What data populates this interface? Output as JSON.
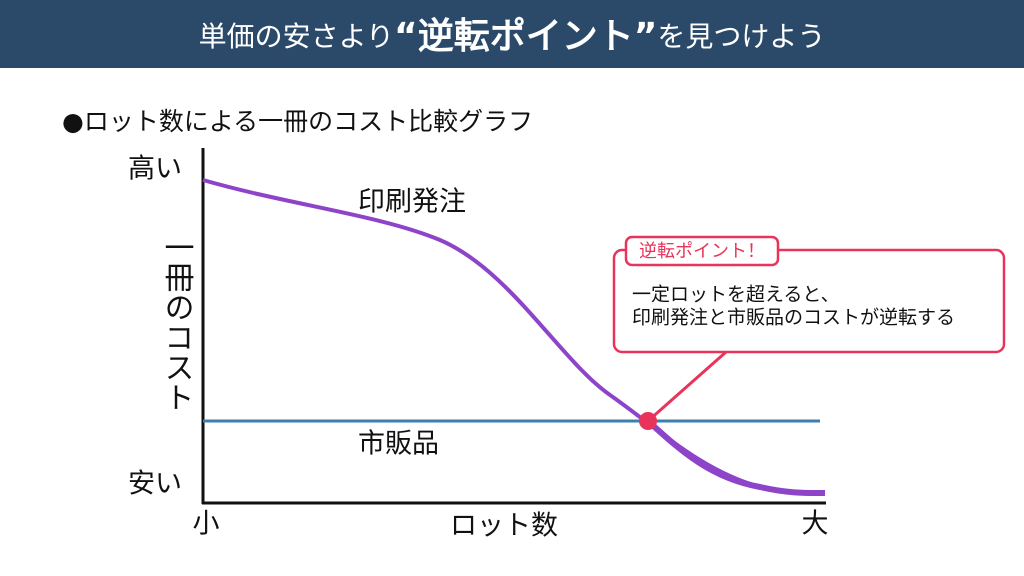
{
  "header": {
    "title_before": "単価の安さより",
    "title_emphasis": "“逆転ポイント”",
    "title_after": "を見つけよう"
  },
  "subtitle": "●ロット数による一冊のコスト比較グラフ",
  "y_axis": {
    "label": "一冊のコスト",
    "top": "高い",
    "bottom": "安い"
  },
  "x_axis": {
    "label": "ロット数",
    "left": "小",
    "right": "大"
  },
  "lines": [
    {
      "label": "印刷発注"
    },
    {
      "label": "市販品"
    }
  ],
  "callout": {
    "title": "逆転ポイント！",
    "body": [
      "一定ロットを超えると、",
      "印刷発注と市販品のコストが逆転する"
    ]
  }
}
